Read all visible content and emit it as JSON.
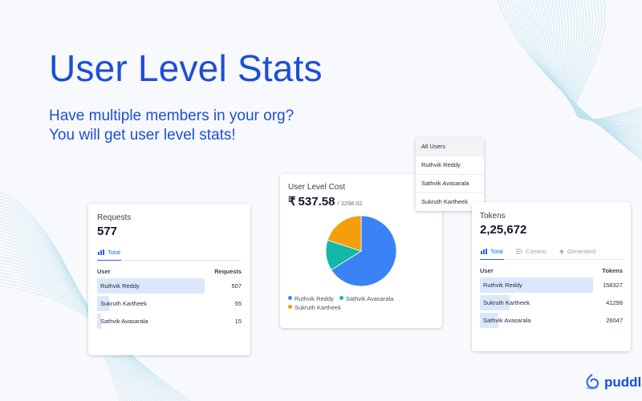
{
  "hero": {
    "title": "User Level Stats",
    "subtitle_line1": "Have multiple members in your org?",
    "subtitle_line2": "You will get user level stats!"
  },
  "requests_card": {
    "label": "Requests",
    "value": "577",
    "tabs": [
      {
        "label": "Total",
        "icon": "bar-chart-icon"
      }
    ],
    "col_user": "User",
    "col_value": "Requests",
    "rows": [
      {
        "name": "Ruthvik Reddy",
        "value": "507",
        "fill": 0.88
      },
      {
        "name": "Sukruth Kartheek",
        "value": "55",
        "fill": 0.1
      },
      {
        "name": "Sathvik Avasarala",
        "value": "15",
        "fill": 0.03
      }
    ]
  },
  "cost_card": {
    "label": "User Level Cost",
    "currency": "₹",
    "value": "537.58",
    "total": "/ 3298.02",
    "legend": [
      {
        "name": "Ruthvik Reddy",
        "color": "#3b82f6"
      },
      {
        "name": "Sathvik Avasarala",
        "color": "#14b8a6"
      },
      {
        "name": "Sukruth Kartheek",
        "color": "#f59e0b"
      }
    ]
  },
  "chart_data": {
    "type": "pie",
    "categories": [
      "Ruthvik Reddy",
      "Sathvik Avasarala",
      "Sukruth Kartheek"
    ],
    "values": [
      66,
      14,
      20
    ],
    "colors": [
      "#3b82f6",
      "#14b8a6",
      "#f59e0b"
    ],
    "title": "",
    "legend_position": "bottom"
  },
  "user_dropdown": {
    "items": [
      "All Users",
      "Ruthvik Reddy",
      "Sathvik Avasarala",
      "Sukruth Kartheek"
    ],
    "selected": "All Users"
  },
  "tokens_card": {
    "label": "Tokens",
    "value": "2,25,672",
    "tabs": [
      {
        "label": "Total",
        "icon": "bar-chart-icon"
      },
      {
        "label": "Context",
        "icon": "context-icon"
      },
      {
        "label": "Generated",
        "icon": "bolt-icon"
      }
    ],
    "col_user": "User",
    "col_value": "Tokens",
    "rows": [
      {
        "name": "Ruthvik Reddy",
        "value": "158327",
        "fill": 1.0
      },
      {
        "name": "Sukruth Kartheek",
        "value": "41298",
        "fill": 0.26
      },
      {
        "name": "Sathvik Avasarala",
        "value": "26047",
        "fill": 0.16
      }
    ]
  },
  "brand": {
    "name": "puddl",
    "icon": "puddl-logo-icon"
  },
  "colors": {
    "accent": "#1d4ed8",
    "bar": "#dbe7fb",
    "active_tab": "#2563eb"
  }
}
